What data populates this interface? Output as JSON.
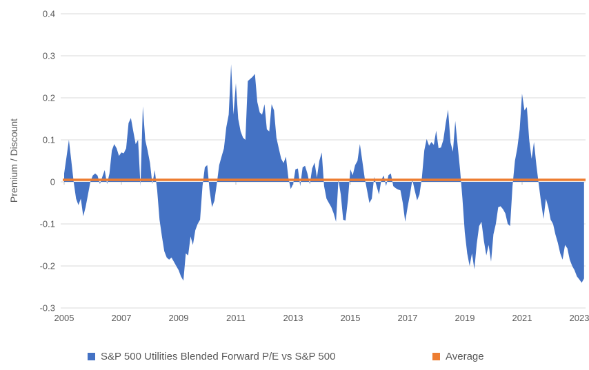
{
  "chart": {
    "y_axis": {
      "title": "Premium / Discount",
      "tick_labels": [
        "0.4",
        "0.3",
        "0.2",
        "0.1",
        "0",
        "-0.1",
        "-0.2",
        "-0.3"
      ],
      "min": -0.3,
      "max": 0.4,
      "step": 0.1
    },
    "x_axis": {
      "tick_labels": [
        "2005",
        "2007",
        "2009",
        "2011",
        "2013",
        "2015",
        "2017",
        "2019",
        "2021",
        "2023"
      ]
    },
    "legend": [
      {
        "label": "S&P 500 Utilities Blended Forward P/E vs S&P 500",
        "color": "#4472C4"
      },
      {
        "label": "Average",
        "color": "#ED7D31"
      }
    ],
    "colors": {
      "series_blue": "#4472C4",
      "average_orange": "#ED7D31",
      "gridline": "#D9D9D9",
      "axis_text": "#595959"
    }
  },
  "chart_data": {
    "type": "area",
    "title": "",
    "xlabel": "",
    "ylabel": "Premium / Discount",
    "ylim": [
      -0.3,
      0.4
    ],
    "x_start_year": 2005,
    "x_end_year": 2023.25,
    "x_interval": "monthly",
    "grid": true,
    "legend_position": "bottom",
    "series": [
      {
        "name": "S&P 500 Utilities Blended Forward P/E vs S&P 500",
        "type": "area",
        "color": "#4472C4",
        "values": [
          0.02,
          0.06,
          0.1,
          0.05,
          0.0,
          -0.04,
          -0.055,
          -0.04,
          -0.082,
          -0.06,
          -0.03,
          0.0,
          0.015,
          0.02,
          0.015,
          -0.005,
          0.012,
          0.028,
          -0.005,
          0.02,
          0.075,
          0.09,
          0.08,
          0.062,
          0.07,
          0.068,
          0.08,
          0.14,
          0.152,
          0.12,
          0.09,
          0.1,
          -0.01,
          0.18,
          0.1,
          0.075,
          0.045,
          -0.005,
          0.028,
          -0.02,
          -0.09,
          -0.13,
          -0.165,
          -0.18,
          -0.185,
          -0.18,
          -0.19,
          -0.2,
          -0.21,
          -0.225,
          -0.235,
          -0.17,
          -0.175,
          -0.13,
          -0.15,
          -0.115,
          -0.1,
          -0.09,
          -0.01,
          0.035,
          0.04,
          -0.02,
          -0.06,
          -0.045,
          -0.005,
          0.04,
          0.06,
          0.08,
          0.13,
          0.16,
          0.28,
          0.16,
          0.235,
          0.15,
          0.12,
          0.105,
          0.1,
          0.24,
          0.245,
          0.25,
          0.257,
          0.19,
          0.165,
          0.16,
          0.185,
          0.125,
          0.12,
          0.185,
          0.17,
          0.105,
          0.08,
          0.055,
          0.045,
          0.06,
          0.01,
          -0.017,
          -0.005,
          0.03,
          0.032,
          -0.01,
          0.035,
          0.038,
          0.02,
          -0.006,
          0.032,
          0.046,
          0.01,
          0.05,
          0.07,
          -0.01,
          -0.04,
          -0.05,
          -0.06,
          -0.075,
          -0.095,
          0.005,
          -0.03,
          -0.09,
          -0.092,
          -0.042,
          0.03,
          0.016,
          0.04,
          0.05,
          0.09,
          0.05,
          0.01,
          -0.02,
          -0.05,
          -0.04,
          0.012,
          -0.01,
          -0.03,
          0.005,
          0.015,
          -0.01,
          0.016,
          0.02,
          -0.01,
          -0.015,
          -0.018,
          -0.02,
          -0.05,
          -0.095,
          -0.06,
          -0.03,
          0.005,
          -0.02,
          -0.044,
          -0.03,
          0.01,
          0.075,
          0.102,
          0.086,
          0.095,
          0.088,
          0.122,
          0.08,
          0.082,
          0.1,
          0.14,
          0.172,
          0.094,
          0.072,
          0.145,
          0.086,
          0.03,
          -0.04,
          -0.12,
          -0.17,
          -0.2,
          -0.17,
          -0.208,
          -0.148,
          -0.105,
          -0.095,
          -0.14,
          -0.175,
          -0.15,
          -0.19,
          -0.125,
          -0.1,
          -0.06,
          -0.058,
          -0.065,
          -0.075,
          -0.1,
          -0.105,
          -0.01,
          0.05,
          0.08,
          0.125,
          0.21,
          0.17,
          0.178,
          0.1,
          0.055,
          0.095,
          0.04,
          -0.005,
          -0.05,
          -0.088,
          -0.04,
          -0.06,
          -0.09,
          -0.1,
          -0.125,
          -0.145,
          -0.17,
          -0.185,
          -0.15,
          -0.158,
          -0.185,
          -0.2,
          -0.21,
          -0.225,
          -0.232,
          -0.24,
          -0.23
        ]
      },
      {
        "name": "Average",
        "type": "hline",
        "color": "#ED7D31",
        "value": 0.005
      }
    ]
  }
}
